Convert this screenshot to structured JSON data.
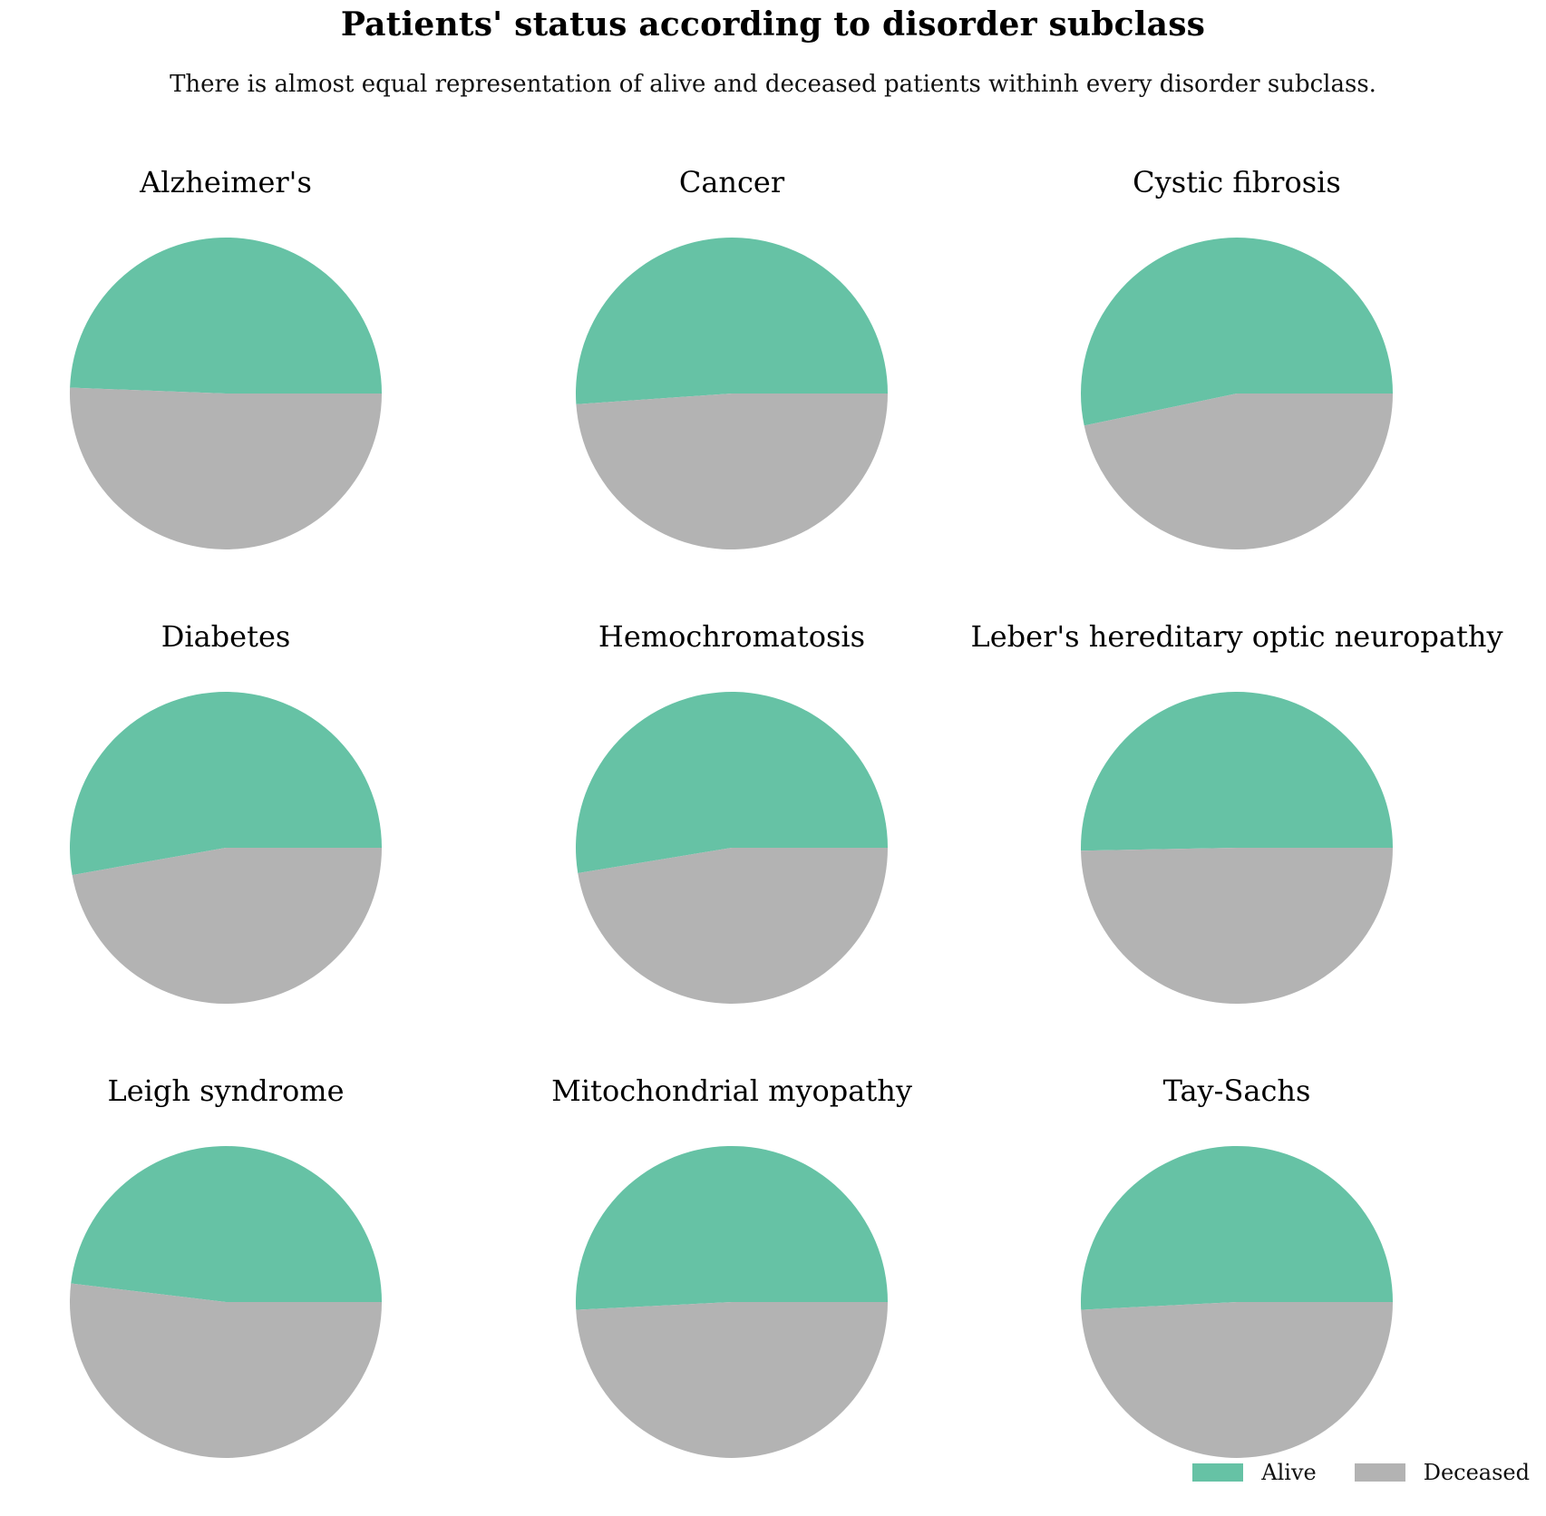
{
  "title": "Patients' status according to disorder subclass",
  "subtitle": "There is almost equal representation of alive and deceased patients withinh every disorder subclass.",
  "chart_data": {
    "type": "pie",
    "series_names": [
      "Alive",
      "Deceased"
    ],
    "colors": {
      "Alive": "#66c2a5",
      "Deceased": "#b3b3b3"
    },
    "legend_placement": "bottom-right",
    "pies": [
      {
        "title": "Alzheimer's",
        "values": {
          "Alive": 49.4,
          "Deceased": 50.6
        }
      },
      {
        "title": "Cancer",
        "values": {
          "Alive": 51.1,
          "Deceased": 48.9
        }
      },
      {
        "title": "Cystic fibrosis",
        "values": {
          "Alive": 53.3,
          "Deceased": 46.7
        }
      },
      {
        "title": "Diabetes",
        "values": {
          "Alive": 52.8,
          "Deceased": 47.2
        }
      },
      {
        "title": "Hemochromatosis",
        "values": {
          "Alive": 52.6,
          "Deceased": 47.4
        }
      },
      {
        "title": "Leber's hereditary optic neuropathy",
        "values": {
          "Alive": 50.3,
          "Deceased": 49.7
        }
      },
      {
        "title": "Leigh syndrome",
        "values": {
          "Alive": 48.1,
          "Deceased": 51.9
        }
      },
      {
        "title": "Mitochondrial myopathy",
        "values": {
          "Alive": 50.8,
          "Deceased": 49.2
        }
      },
      {
        "title": "Tay-Sachs",
        "values": {
          "Alive": 50.8,
          "Deceased": 49.2
        }
      }
    ]
  },
  "legend": {
    "items": [
      {
        "label": "Alive",
        "color": "#66c2a5"
      },
      {
        "label": "Deceased",
        "color": "#b3b3b3"
      }
    ]
  }
}
